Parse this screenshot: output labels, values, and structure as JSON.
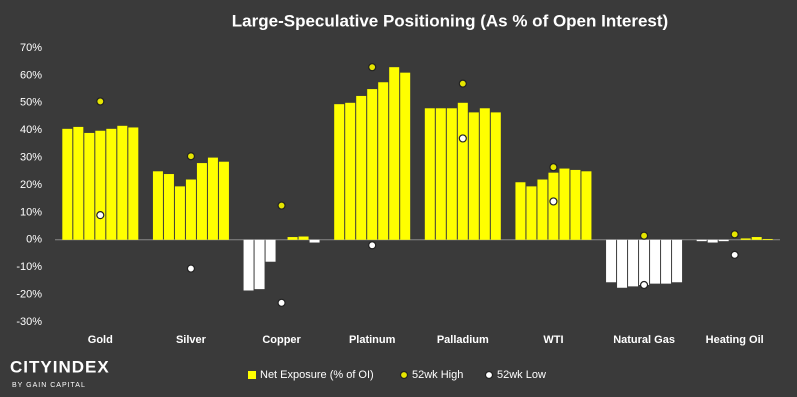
{
  "chart_data": {
    "type": "grouped-bar-range",
    "title": "Large-Speculative Positioning (As % of Open Interest)",
    "categories": [
      "Gold",
      "Silver",
      "Copper",
      "Platinum",
      "Palladium",
      "WTI",
      "Natural Gas",
      "Heating Oil"
    ],
    "series": [
      {
        "name": "Net Exposure (% of OI)",
        "color": "#ffff00",
        "negative_color": "#ffffff",
        "values": [
          [
            40.5,
            41.2,
            39,
            39.8,
            40.5,
            41.6,
            41
          ],
          [
            25,
            24,
            19.5,
            22,
            28,
            30,
            28.5
          ],
          [
            -18.5,
            -18,
            -8,
            0,
            1,
            1.2,
            -1
          ],
          [
            49.5,
            50,
            52.5,
            55,
            57.5,
            63,
            61
          ],
          [
            48,
            48,
            48,
            50,
            46.5,
            48,
            46.5
          ],
          [
            21,
            19.5,
            22,
            24.5,
            26,
            25.5,
            25
          ],
          [
            -15.5,
            -17.5,
            -17,
            -16.5,
            -16,
            -16,
            -15.5
          ],
          [
            -0.5,
            -1,
            -0.5,
            0,
            0.5,
            1,
            0.3
          ]
        ]
      },
      {
        "name": "52wk High",
        "color": "#e6e600",
        "values": [
          50.5,
          30.5,
          12.5,
          63,
          57,
          26.5,
          1.5,
          2
        ]
      },
      {
        "name": "52wk Low",
        "color": "#ffffff",
        "values": [
          9,
          -10.5,
          -23,
          -2,
          37,
          14,
          -16.5,
          -5.5
        ]
      }
    ],
    "ylim": [
      -30,
      70
    ],
    "yticks": [
      {
        "value": -30,
        "label": "-30%"
      },
      {
        "value": -20,
        "label": "-20%"
      },
      {
        "value": -10,
        "label": "-10%"
      },
      {
        "value": 0,
        "label": "0%"
      },
      {
        "value": 10,
        "label": "10%"
      },
      {
        "value": 20,
        "label": "20%"
      },
      {
        "value": 30,
        "label": "30%"
      },
      {
        "value": 40,
        "label": "40%"
      },
      {
        "value": 50,
        "label": "50%"
      },
      {
        "value": 60,
        "label": "60%"
      },
      {
        "value": 70,
        "label": "70%"
      }
    ],
    "grid": false,
    "legend": "bottom"
  },
  "branding": {
    "name": "CITYINDEX",
    "tagline": "BY GAIN CAPITAL"
  }
}
